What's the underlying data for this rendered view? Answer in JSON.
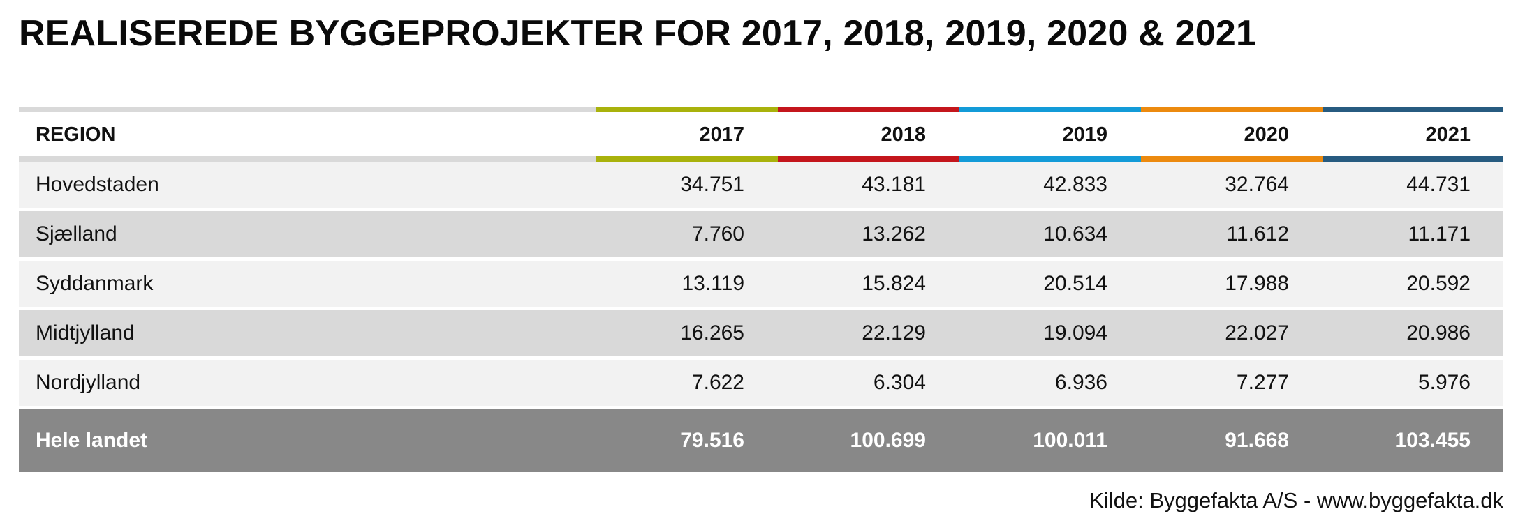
{
  "title": "REALISEREDE BYGGEPROJEKTER FOR 2017, 2018, 2019, 2020 & 2021",
  "colors": {
    "neutral_bar": "#d9d9d9",
    "2017": "#a9b20c",
    "2018": "#c4161c",
    "2019": "#139bd8",
    "2020": "#ec8a0f",
    "2021": "#275b80",
    "row_light": "#f2f2f2",
    "row_dark": "#d9d9d9",
    "total_row": "#888888"
  },
  "chart_data": {
    "type": "table",
    "columns": [
      "REGION",
      "2017",
      "2018",
      "2019",
      "2020",
      "2021"
    ],
    "rows": [
      {
        "region": "Hovedstaden",
        "values": [
          "34.751",
          "43.181",
          "42.833",
          "32.764",
          "44.731"
        ]
      },
      {
        "region": "Sjælland",
        "values": [
          "7.760",
          "13.262",
          "10.634",
          "11.612",
          "11.171"
        ]
      },
      {
        "region": "Syddanmark",
        "values": [
          "13.119",
          "15.824",
          "20.514",
          "17.988",
          "20.592"
        ]
      },
      {
        "region": "Midtjylland",
        "values": [
          "16.265",
          "22.129",
          "19.094",
          "22.027",
          "20.986"
        ]
      },
      {
        "region": "Nordjylland",
        "values": [
          "7.622",
          "6.304",
          "6.936",
          "7.277",
          "5.976"
        ]
      }
    ],
    "total": {
      "region": "Hele landet",
      "values": [
        "79.516",
        "100.699",
        "100.011",
        "91.668",
        "103.455"
      ]
    }
  },
  "source": "Kilde: Byggefakta A/S - www.byggefakta.dk"
}
